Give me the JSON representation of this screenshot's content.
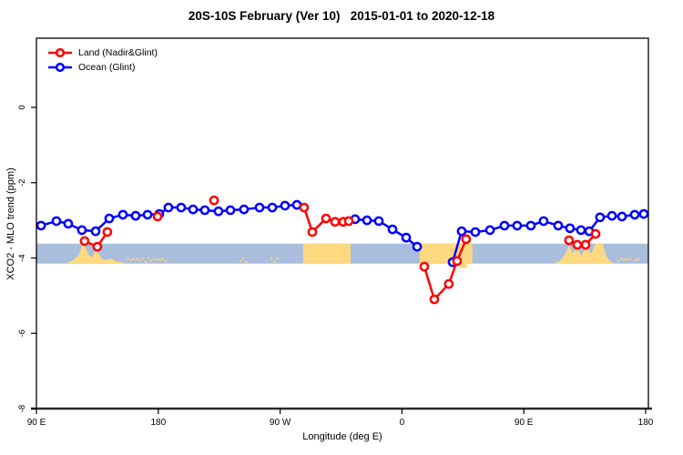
{
  "header": {
    "title": "20S-10S February (Ver 10)   2015-01-01 to 2020-12-18"
  },
  "axes": {
    "x_label": "Longitude (deg E)",
    "y_label": "XCO2 - MLO trend (ppm)"
  },
  "chart_data": {
    "type": "line",
    "title": "20S-10S February (Ver 10)   2015-01-01 to 2020-12-18",
    "xlabel": "Longitude (deg E)",
    "ylabel": "XCO2 - MLO trend (ppm)",
    "xlim": [
      90,
      540
    ],
    "ylim": [
      -8,
      1.84
    ],
    "grid": "off",
    "legend_position": "top-left",
    "x_ticks": [
      {
        "lon": 90,
        "label": "90 E"
      },
      {
        "lon": 180,
        "label": "180"
      },
      {
        "lon": 270,
        "label": "90 W"
      },
      {
        "lon": 360,
        "label": "0"
      },
      {
        "lon": 450,
        "label": "90 E"
      },
      {
        "lon": 540,
        "label": "180"
      }
    ],
    "y_ticks": [
      {
        "v": 0,
        "label": "0"
      },
      {
        "v": -2,
        "label": "-2"
      },
      {
        "v": -4,
        "label": "-4"
      },
      {
        "v": -6,
        "label": "-6"
      },
      {
        "v": -8,
        "label": "-8"
      }
    ],
    "band": {
      "v_top": -3.62,
      "v_bottom": -4.15,
      "color": "#a9bedd"
    },
    "land_color": "#ffd980",
    "land_regions": [
      {
        "from": 113,
        "to": 155,
        "type": "ragged",
        "profile": [
          [
            0,
            0.04
          ],
          [
            0.06,
            0.13
          ],
          [
            0.12,
            0.22
          ],
          [
            0.2,
            0.45
          ],
          [
            0.27,
            1.0
          ],
          [
            0.31,
            0.85
          ],
          [
            0.36,
            0.5
          ],
          [
            0.42,
            0.3
          ],
          [
            0.5,
            0.68
          ],
          [
            0.55,
            0.5
          ],
          [
            0.6,
            0.25
          ],
          [
            0.68,
            0.18
          ],
          [
            0.78,
            0.26
          ],
          [
            0.85,
            0.12
          ],
          [
            0.93,
            0.08
          ],
          [
            1,
            0.04
          ]
        ]
      },
      {
        "from": 287,
        "to": 322,
        "type": "block"
      },
      {
        "from": 373,
        "to": 412,
        "type": "block"
      },
      {
        "from": 473,
        "to": 516,
        "type": "ragged",
        "profile": [
          [
            0,
            0.04
          ],
          [
            0.08,
            0.12
          ],
          [
            0.15,
            0.35
          ],
          [
            0.25,
            0.92
          ],
          [
            0.3,
            0.5
          ],
          [
            0.38,
            0.78
          ],
          [
            0.45,
            0.4
          ],
          [
            0.55,
            0.85
          ],
          [
            0.62,
            0.5
          ],
          [
            0.7,
            1.0
          ],
          [
            0.82,
            1.0
          ],
          [
            0.88,
            0.35
          ],
          [
            0.95,
            0.12
          ],
          [
            1,
            0.05
          ]
        ]
      }
    ],
    "land_extra": [
      {
        "from": 402,
        "to": 408,
        "v_top": -4.15,
        "v_bot": -4.27
      }
    ],
    "speckles": [
      {
        "from": 157,
        "to": 186
      },
      {
        "from": 240,
        "to": 246
      },
      {
        "from": 263,
        "to": 268
      },
      {
        "from": 519,
        "to": 528
      },
      {
        "from": 532,
        "to": 536
      }
    ],
    "series": [
      {
        "name": "Land (Nadir&Glint)",
        "color": "#ff0000",
        "runs": [
          [
            [
              125.6,
              -3.55
            ],
            [
              135.0,
              -3.7
            ],
            [
              142.4,
              -3.31
            ]
          ],
          [
            [
              179.5,
              -2.9
            ]
          ],
          [
            [
              221.2,
              -2.47
            ]
          ],
          [
            [
              287.7,
              -2.66
            ],
            [
              293.8,
              -3.31
            ],
            [
              303.9,
              -2.95
            ],
            [
              310.6,
              -3.04
            ],
            [
              316.6,
              -3.04
            ],
            [
              320.7,
              -3.02
            ]
          ],
          [
            [
              376.5,
              -4.23
            ],
            [
              383.9,
              -5.1
            ],
            [
              394.6,
              -4.69
            ],
            [
              400.7,
              -4.08
            ],
            [
              407.4,
              -3.5
            ]
          ],
          [
            [
              483.4,
              -3.53
            ],
            [
              489.5,
              -3.65
            ],
            [
              495.6,
              -3.65
            ],
            [
              503.0,
              -3.36
            ]
          ]
        ]
      },
      {
        "name": "Ocean (Glint)",
        "color": "#0000ff",
        "runs": [
          [
            [
              93.4,
              -3.14
            ],
            [
              104.8,
              -3.02
            ],
            [
              113.5,
              -3.09
            ],
            [
              123.6,
              -3.26
            ],
            [
              133.7,
              -3.29
            ],
            [
              143.8,
              -2.95
            ],
            [
              153.9,
              -2.85
            ],
            [
              163.3,
              -2.88
            ],
            [
              172.1,
              -2.85
            ],
            [
              180.8,
              -2.83
            ],
            [
              187.5,
              -2.66
            ],
            [
              196.9,
              -2.66
            ],
            [
              205.7,
              -2.71
            ],
            [
              214.4,
              -2.73
            ],
            [
              224.5,
              -2.76
            ],
            [
              233.3,
              -2.73
            ],
            [
              243.3,
              -2.71
            ],
            [
              254.8,
              -2.66
            ],
            [
              264.2,
              -2.66
            ],
            [
              273.6,
              -2.61
            ],
            [
              282.4,
              -2.59
            ]
          ],
          [
            [
              325.4,
              -2.97
            ],
            [
              334.2,
              -3.0
            ],
            [
              342.9,
              -3.02
            ],
            [
              353.0,
              -3.24
            ],
            [
              363.1,
              -3.46
            ],
            [
              371.2,
              -3.7
            ]
          ],
          [
            [
              397.4,
              -4.11
            ],
            [
              404.1,
              -3.29
            ],
            [
              414.2,
              -3.31
            ],
            [
              425.0,
              -3.26
            ],
            [
              435.7,
              -3.14
            ],
            [
              445.1,
              -3.14
            ],
            [
              455.2,
              -3.14
            ],
            [
              464.6,
              -3.02
            ],
            [
              475.4,
              -3.14
            ],
            [
              484.1,
              -3.21
            ],
            [
              492.2,
              -3.26
            ],
            [
              498.3,
              -3.29
            ],
            [
              506.3,
              -2.92
            ],
            [
              515.1,
              -2.88
            ],
            [
              522.5,
              -2.9
            ],
            [
              531.9,
              -2.85
            ],
            [
              538.6,
              -2.83
            ]
          ]
        ]
      }
    ]
  }
}
